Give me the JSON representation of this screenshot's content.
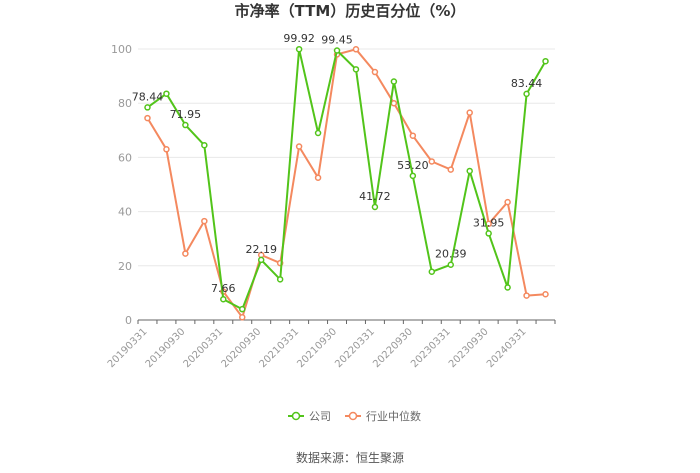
{
  "chart_data": {
    "type": "line",
    "title": "市净率（TTM）历史百分位（%）",
    "xlabel": "",
    "ylabel": "",
    "ylim": [
      0,
      100
    ],
    "yticks": [
      0,
      20,
      40,
      60,
      80,
      100
    ],
    "x_tick_labels": [
      "20190331",
      "20190930",
      "20200331",
      "20200930",
      "20210331",
      "20210930",
      "20220331",
      "20220930",
      "20230331",
      "20230930",
      "20240331"
    ],
    "grid": true,
    "legend_position": "bottom",
    "series": [
      {
        "name": "公司",
        "color": "#52c41a",
        "values": [
          78.44,
          83.5,
          71.95,
          64.5,
          7.66,
          4.0,
          22.19,
          15.0,
          99.92,
          69.0,
          99.45,
          92.5,
          41.72,
          88.0,
          53.2,
          17.8,
          20.39,
          55.0,
          31.95,
          12.0,
          83.44,
          95.5
        ],
        "data_labels": [
          {
            "index": 0,
            "text": "78.44"
          },
          {
            "index": 2,
            "text": "71.95"
          },
          {
            "index": 4,
            "text": "7.66"
          },
          {
            "index": 6,
            "text": "22.19"
          },
          {
            "index": 8,
            "text": "99.92"
          },
          {
            "index": 10,
            "text": "99.45"
          },
          {
            "index": 12,
            "text": "41.72"
          },
          {
            "index": 14,
            "text": "53.20"
          },
          {
            "index": 16,
            "text": "20.39"
          },
          {
            "index": 18,
            "text": "31.95"
          },
          {
            "index": 20,
            "text": "83.44"
          }
        ]
      },
      {
        "name": "行业中位数",
        "color": "#f4895f",
        "values": [
          74.5,
          63.0,
          24.5,
          36.5,
          10.5,
          1.0,
          24.0,
          21.0,
          64.0,
          52.5,
          98.0,
          99.9,
          91.5,
          80.0,
          68.0,
          58.5,
          55.5,
          76.5,
          35.5,
          43.5,
          9.0,
          9.5
        ]
      }
    ]
  },
  "footer": {
    "source": "数据来源：恒生聚源"
  }
}
